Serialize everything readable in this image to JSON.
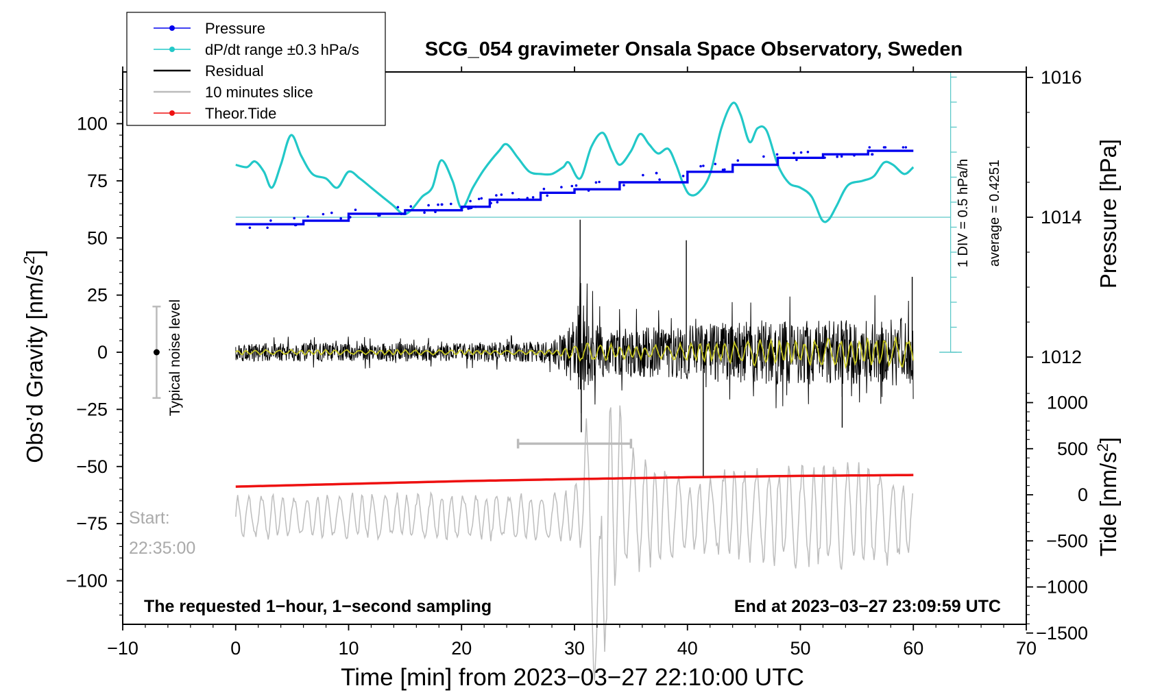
{
  "chart_data": {
    "type": "line",
    "title": "SCG_054 gravimeter Onsala Space Observatory, Sweden",
    "xlabel": "Time [min] from 2023−03−27 22:10:00 UTC",
    "xlim": [
      -10,
      70
    ],
    "xticks": [
      -10,
      0,
      10,
      20,
      30,
      40,
      50,
      60,
      70
    ],
    "xtick_labels": [
      "−10",
      "0",
      "10",
      "20",
      "30",
      "40",
      "50",
      "60",
      "70"
    ],
    "left_axis": {
      "label": "Obs’d Gravity [nm/s",
      "label_sup": "2",
      "label_close": "]",
      "ylim": [
        -120,
        120
      ],
      "ticks": [
        100,
        75,
        50,
        25,
        0,
        -25,
        -50,
        -75,
        -100
      ],
      "tick_labels": [
        "100",
        "75",
        "50",
        "25",
        "0",
        "−25",
        "−50",
        "−75",
        "−100"
      ]
    },
    "right_pressure_axis": {
      "label": "Pressure [hPa]",
      "ticks": [
        1016,
        1014,
        1012
      ],
      "tick_labels": [
        "1016",
        "1014",
        "1012"
      ]
    },
    "right_tide_axis": {
      "label": "Tide [nm/s",
      "label_sup": "2",
      "label_close": "]",
      "ticks": [
        1000,
        500,
        0,
        -500,
        -1000,
        -1500
      ],
      "tick_labels": [
        "1000",
        "500",
        "0",
        "−500",
        "−1000",
        "−1500"
      ]
    },
    "legend": {
      "position": "top-left",
      "entries": [
        {
          "label": "Pressure",
          "color": "#0000ee",
          "marker": "dot"
        },
        {
          "label": "dP/dt range ±0.3 hPa/s",
          "color": "#22c8c8",
          "marker": "dot"
        },
        {
          "label": "Residual",
          "color": "#000000",
          "marker": "none"
        },
        {
          "label": "10 minutes slice",
          "color": "#bbbbbb",
          "marker": "none"
        },
        {
          "label": "Theor.Tide",
          "color": "#ee1111",
          "marker": "dot"
        }
      ]
    },
    "series": [
      {
        "name": "Pressure",
        "color": "#0000ee",
        "x": [
          0,
          3,
          6,
          10,
          15,
          20,
          22.5,
          27,
          30,
          34,
          40,
          44,
          48,
          52,
          56,
          60
        ],
        "values": [
          1013.9,
          1013.9,
          1013.95,
          1014.05,
          1014.1,
          1014.15,
          1014.25,
          1014.35,
          1014.4,
          1014.5,
          1014.65,
          1014.75,
          1014.85,
          1014.9,
          1014.95,
          1014.95
        ]
      },
      {
        "name": "dP/dt range ±0.3 hPa/s",
        "color": "#22c8c8",
        "x": [
          0,
          1,
          1.7,
          2.5,
          3.2,
          4,
          4.9,
          5.8,
          6.8,
          8,
          9,
          10,
          11,
          12,
          13,
          14,
          14.8,
          15.5,
          16.5,
          17.4,
          18.2,
          19.2,
          20,
          21,
          22,
          23.3,
          24,
          25,
          26,
          27,
          28,
          29,
          29.5,
          30.5,
          31.5,
          32.5,
          33.3,
          34,
          35,
          35.8,
          36.6,
          37.4,
          38.3,
          39,
          39.6,
          40.2,
          41,
          42,
          43,
          44,
          44.7,
          45.5,
          46.2,
          47,
          48,
          49,
          50,
          51,
          51.9,
          52.5,
          53.2,
          54.2,
          55.5,
          56.5,
          57.4,
          58.2,
          59.2,
          60
        ],
        "values": [
          82,
          81,
          83.5,
          79,
          72,
          82,
          95,
          86,
          78,
          76,
          72,
          79,
          76,
          72,
          68,
          64,
          60.5,
          62,
          68,
          72,
          84,
          75,
          63,
          72,
          80,
          88,
          91,
          85,
          79,
          78,
          78,
          81,
          83,
          76,
          90,
          96,
          88,
          82,
          88,
          95.5,
          91,
          87,
          89,
          82,
          74,
          69,
          70,
          78,
          98,
          109,
          104,
          92,
          98,
          97,
          82,
          74,
          72,
          68,
          58,
          58,
          64,
          73,
          75,
          77,
          83,
          82,
          78,
          81
        ]
      },
      {
        "name": "Residual",
        "color": "#000000",
        "x": [
          0,
          10,
          20,
          28,
          30,
          30.5,
          31,
          32,
          34,
          36,
          38,
          40,
          41,
          42,
          45,
          50,
          55,
          60
        ],
        "values": [
          0,
          0,
          0,
          0,
          -12,
          0,
          8,
          -8,
          2,
          6,
          -3,
          4,
          -2,
          8,
          -4,
          10,
          -6,
          0
        ],
        "amplitude_envelope": [
          4,
          4,
          4,
          5,
          14,
          35,
          20,
          12,
          11,
          11,
          11,
          12,
          12,
          13,
          14,
          14,
          14,
          15
        ],
        "spikes": [
          {
            "x": 30.5,
            "value": 58
          },
          {
            "x": 30.6,
            "value": -35
          },
          {
            "x": 39.9,
            "value": 49
          },
          {
            "x": 41.4,
            "value": -55
          },
          {
            "x": 53.7,
            "value": -33
          },
          {
            "x": 59.9,
            "value": 33
          }
        ]
      },
      {
        "name": "Residual smoothed",
        "color": "#cccc22",
        "x": [
          0,
          10,
          20,
          28,
          30,
          35,
          40,
          45,
          50,
          55,
          60
        ],
        "values": [
          0,
          0,
          0,
          0,
          5,
          3,
          4,
          6,
          6,
          7,
          7
        ]
      },
      {
        "name": "10 minutes slice",
        "color": "#bbbbbb",
        "x": [
          0,
          30,
          31,
          32.2,
          33,
          34,
          35,
          40,
          45,
          50,
          55,
          60
        ],
        "values": [
          -72,
          -72,
          -60,
          -125,
          -70,
          -62,
          -68,
          -72,
          -70,
          -72,
          -70,
          -75
        ],
        "amplitude_envelope": [
          10,
          12,
          35,
          60,
          50,
          40,
          30,
          18,
          22,
          24,
          26,
          18
        ]
      },
      {
        "name": "Theor.Tide",
        "color": "#ee1111",
        "x": [
          0,
          10,
          20,
          30,
          40,
          50,
          60
        ],
        "values": [
          -58.8,
          -57.6,
          -56.4,
          -55.5,
          -54.7,
          -54.1,
          -53.7
        ]
      }
    ],
    "annotations": {
      "noise_label": "Typical noise level",
      "noise_bar_value": 0,
      "noise_bar_range": [
        -20,
        20
      ],
      "noise_x": -7,
      "slice_bar_x": [
        25,
        35
      ],
      "slice_bar_y": -40,
      "scale_text_1": "1 DIV = 0.5 hPa/h",
      "scale_text_2": "average = 0.4251",
      "start_label": "Start:",
      "start_time": "22:35:00",
      "bottom_left": "The requested 1−hour, 1−second sampling",
      "bottom_right": "End at 2023−03−27 23:09:59 UTC"
    }
  }
}
